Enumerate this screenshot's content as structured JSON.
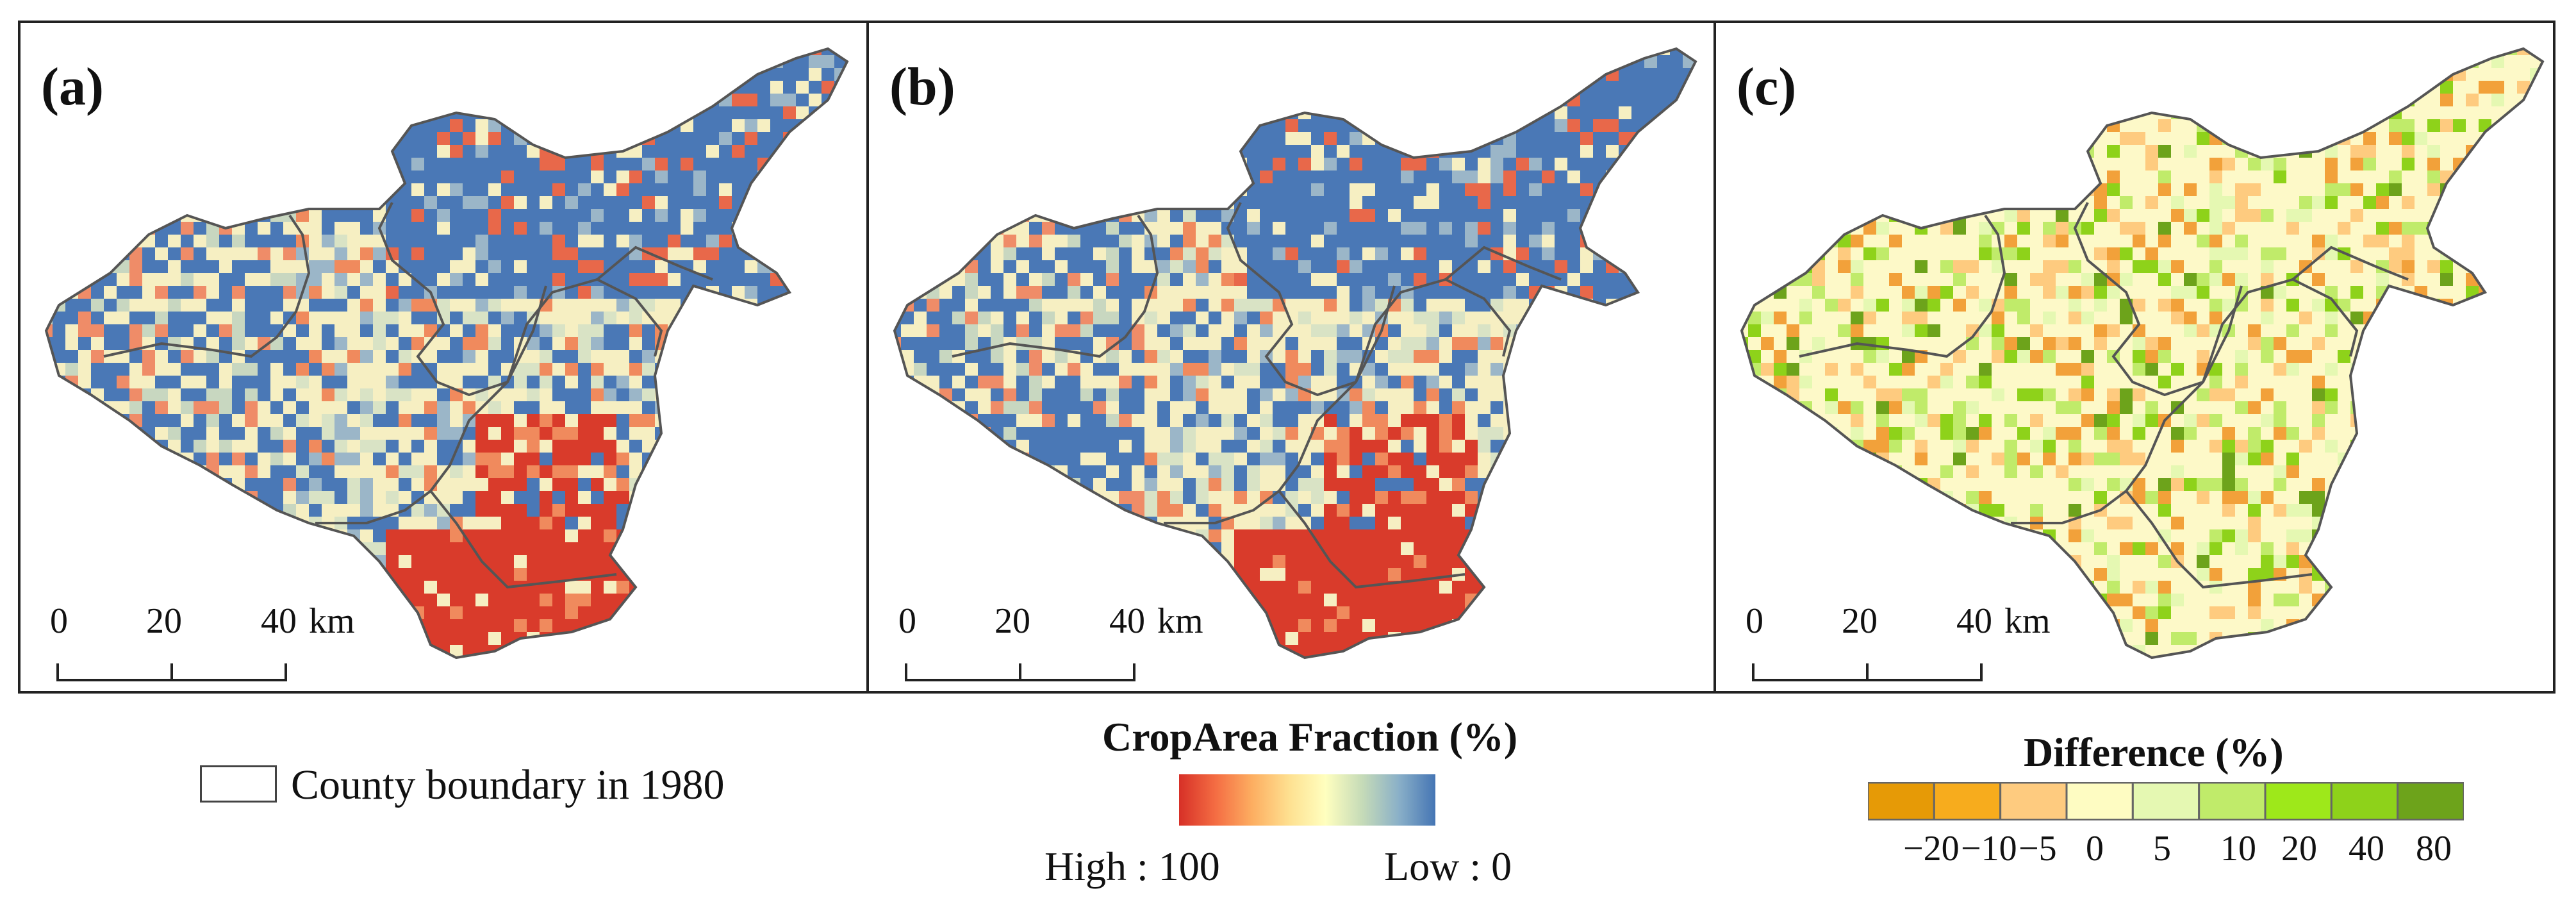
{
  "panels": [
    {
      "label": "(a)",
      "map": "cropland-2000"
    },
    {
      "label": "(b)",
      "map": "cropland-2020"
    },
    {
      "label": "(c)",
      "map": "difference"
    }
  ],
  "scale_bar": {
    "ticks": [
      "0",
      "20",
      "40"
    ],
    "unit": "km"
  },
  "boundary_legend": {
    "label": "County boundary in 1980"
  },
  "crop_legend": {
    "title": "CropArea Fraction (%)",
    "high": "High : 100",
    "low": "Low : 0",
    "colors": [
      "#d73027",
      "#f46d43",
      "#fdae61",
      "#fee090",
      "#ffffbf",
      "#c6dbb8",
      "#8ab0c8",
      "#4575b4"
    ]
  },
  "diff_legend": {
    "title": "Difference (%)",
    "ticks": [
      "−20",
      "−10",
      "−5",
      "0",
      "5",
      "10",
      "20",
      "40",
      "80"
    ],
    "colors": [
      "#e69a06",
      "#f7ac1d",
      "#fecb7f",
      "#fefcc2",
      "#e5f8b2",
      "#c0eb6a",
      "#9ee81a",
      "#8ed21a",
      "#6da31b"
    ]
  },
  "map_colors": {
    "blue": "#4a78b6",
    "red": "#d93b2b",
    "cream": "#f6efc2",
    "pale_yellow": "#fdf9c8",
    "orange": "#f2a13a",
    "green": "#8ed21a",
    "boundary": "#555555"
  }
}
